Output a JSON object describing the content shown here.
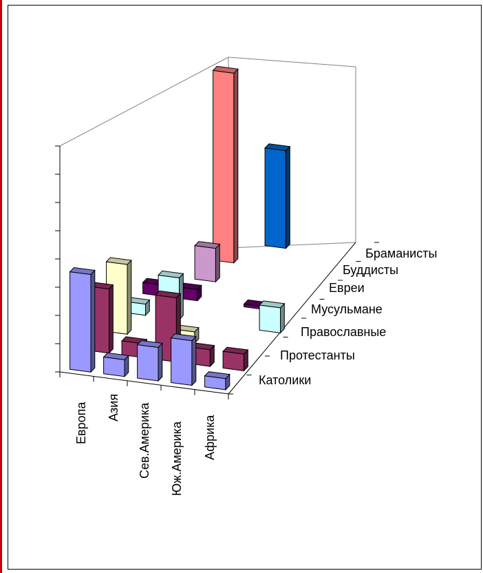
{
  "chart_data": {
    "type": "bar3d",
    "title": "",
    "categories": [
      "Европа",
      "Азия",
      "Сев.Америка",
      "Юж.Америка",
      "Африка"
    ],
    "series": [
      {
        "name": "Католики",
        "values": [
          35,
          6,
          12,
          16,
          4
        ],
        "color": "#9999ff"
      },
      {
        "name": "Протестанты",
        "values": [
          23,
          5,
          23,
          6,
          6
        ],
        "color": "#993366"
      },
      {
        "name": "Православные",
        "values": [
          25,
          0,
          4,
          0,
          0
        ],
        "color": "#ffffcc"
      },
      {
        "name": "Мусульмане",
        "values": [
          4,
          15,
          0,
          0,
          9
        ],
        "color": "#ccffff"
      },
      {
        "name": "Евреи",
        "values": [
          4,
          4,
          0,
          1,
          0
        ],
        "color": "#660066"
      },
      {
        "name": "Буддисты",
        "values": [
          0,
          12,
          0,
          0,
          0
        ],
        "color": "#cc99cc"
      },
      {
        "name": "Браманисты",
        "values": [
          0,
          0,
          0,
          0,
          0
        ],
        "color": "#ff8080"
      },
      {
        "name": "",
        "values": [
          0,
          0,
          0,
          0,
          0
        ],
        "color": "#0066cc"
      }
    ],
    "tall_bars": [
      {
        "series": "Браманисты",
        "category": "Азия",
        "value": 68
      },
      {
        "series": "Браманисты",
        "category": "Сев.Америка",
        "value": 35
      }
    ],
    "grid": false,
    "legend": "none"
  }
}
